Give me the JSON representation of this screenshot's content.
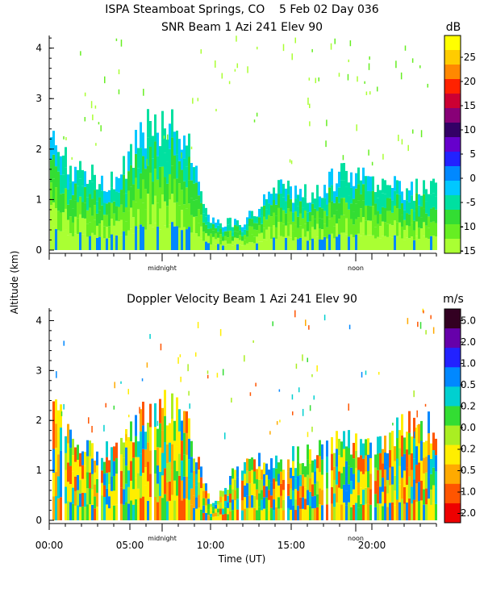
{
  "header": {
    "title": "ISPA Steamboat Springs, CO    5 Feb 02 Day 036"
  },
  "y_axis_label": "Altitude (km)",
  "x_axis_label": "Time (UT)",
  "chart_data": [
    {
      "type": "heatmap",
      "title": "SNR Beam 1 Azi 241 Elev 90",
      "ylabel": "Altitude (km)",
      "ylim": [
        0,
        4.25
      ],
      "y_ticks": [
        "0",
        "1",
        "2",
        "3",
        "4"
      ],
      "x_marks": [
        "midnight",
        "noon"
      ],
      "x_mark_hours": [
        7,
        19
      ],
      "colorbar": {
        "unit": "dB",
        "labels": [
          "25",
          "20",
          "15",
          "10",
          "5",
          "0",
          "-5",
          "-10",
          "-15"
        ],
        "colors": [
          "#ffff00",
          "#ffcc00",
          "#ff8800",
          "#ff2200",
          "#cc0033",
          "#880077",
          "#330066",
          "#6600cc",
          "#2222ff",
          "#0088ff",
          "#00c8ff",
          "#00e0a0",
          "#33dd33",
          "#66ee22",
          "#aaff33"
        ]
      },
      "series": [
        {
          "name": "",
          "x_hours": [
            0,
            2,
            4,
            6,
            8,
            10,
            12,
            14,
            16,
            18,
            20,
            22,
            24
          ],
          "top_km": [
            2.3,
            1.6,
            1.4,
            2.7,
            2.8,
            0.6,
            0.6,
            1.3,
            1.2,
            1.6,
            1.5,
            1.3,
            1.3
          ]
        }
      ]
    },
    {
      "type": "heatmap",
      "title": "Doppler Velocity Beam 1 Azi 241 Elev 90",
      "ylabel": "Altitude (km)",
      "ylim": [
        0,
        4.25
      ],
      "y_ticks": [
        "0",
        "1",
        "2",
        "3",
        "4"
      ],
      "x_marks": [
        "midnight",
        "noon"
      ],
      "x_mark_hours": [
        7,
        19
      ],
      "x_ticks": [
        "00:00",
        "05:00",
        "10:00",
        "15:00",
        "20:00"
      ],
      "xlabel": "Time (UT)",
      "colorbar": {
        "unit": "m/s",
        "labels": [
          "5.0",
          "2.0",
          "1.0",
          "0.5",
          "0.2",
          "0.0",
          "-0.2",
          "-0.5",
          "-1.0",
          "-2.0"
        ],
        "colors": [
          "#330022",
          "#6600aa",
          "#2222ff",
          "#0088ff",
          "#00d0d0",
          "#33dd33",
          "#aaee22",
          "#ffee00",
          "#ffaa00",
          "#ff5500",
          "#ee0000"
        ]
      },
      "series": [
        {
          "name": "",
          "x_hours": [
            0,
            2,
            4,
            6,
            8,
            10,
            12,
            14,
            16,
            18,
            20,
            22,
            24
          ],
          "top_km": [
            2.5,
            1.6,
            1.5,
            2.3,
            2.6,
            0.3,
            1.3,
            1.3,
            1.4,
            1.7,
            1.5,
            2.0,
            2.0
          ]
        }
      ]
    }
  ]
}
